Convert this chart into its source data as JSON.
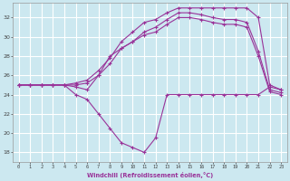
{
  "xlabel": "Windchill (Refroidissement éolien,°C)",
  "background_color": "#cce8f0",
  "grid_color": "#ffffff",
  "line_color": "#993399",
  "xlim": [
    -0.5,
    23.5
  ],
  "ylim": [
    17,
    33.5
  ],
  "yticks": [
    18,
    20,
    22,
    24,
    26,
    28,
    30,
    32
  ],
  "xticks": [
    0,
    1,
    2,
    3,
    4,
    5,
    6,
    7,
    8,
    9,
    10,
    11,
    12,
    13,
    14,
    15,
    16,
    17,
    18,
    19,
    20,
    21,
    22,
    23
  ],
  "hours": [
    0,
    1,
    2,
    3,
    4,
    5,
    6,
    7,
    8,
    9,
    10,
    11,
    12,
    13,
    14,
    15,
    16,
    17,
    18,
    19,
    20,
    21,
    22,
    23
  ],
  "line1": [
    25.0,
    25.0,
    25.0,
    25.0,
    25.0,
    25.2,
    25.5,
    26.5,
    27.8,
    29.5,
    30.5,
    31.5,
    31.8,
    32.5,
    33.0,
    33.0,
    33.0,
    33.0,
    33.0,
    33.0,
    33.0,
    32.0,
    25.0,
    24.5
  ],
  "line2": [
    25.0,
    25.0,
    25.0,
    25.0,
    25.0,
    25.0,
    25.2,
    26.0,
    27.2,
    28.8,
    29.5,
    30.5,
    31.0,
    31.8,
    32.5,
    32.5,
    32.3,
    32.0,
    31.8,
    31.8,
    31.5,
    28.5,
    24.5,
    24.2
  ],
  "line3": [
    25.0,
    25.0,
    25.0,
    25.0,
    25.0,
    24.8,
    24.5,
    26.0,
    28.0,
    28.8,
    29.5,
    30.2,
    30.5,
    31.3,
    32.0,
    32.0,
    31.8,
    31.5,
    31.3,
    31.3,
    31.0,
    28.0,
    24.3,
    24.0
  ],
  "line4": [
    25.0,
    25.0,
    25.0,
    25.0,
    25.0,
    24.0,
    23.5,
    22.0,
    20.5,
    19.0,
    18.5,
    18.0,
    19.5,
    24.0,
    24.0,
    24.0,
    24.0,
    24.0,
    24.0,
    24.0,
    24.0,
    24.0,
    24.8,
    24.5
  ]
}
